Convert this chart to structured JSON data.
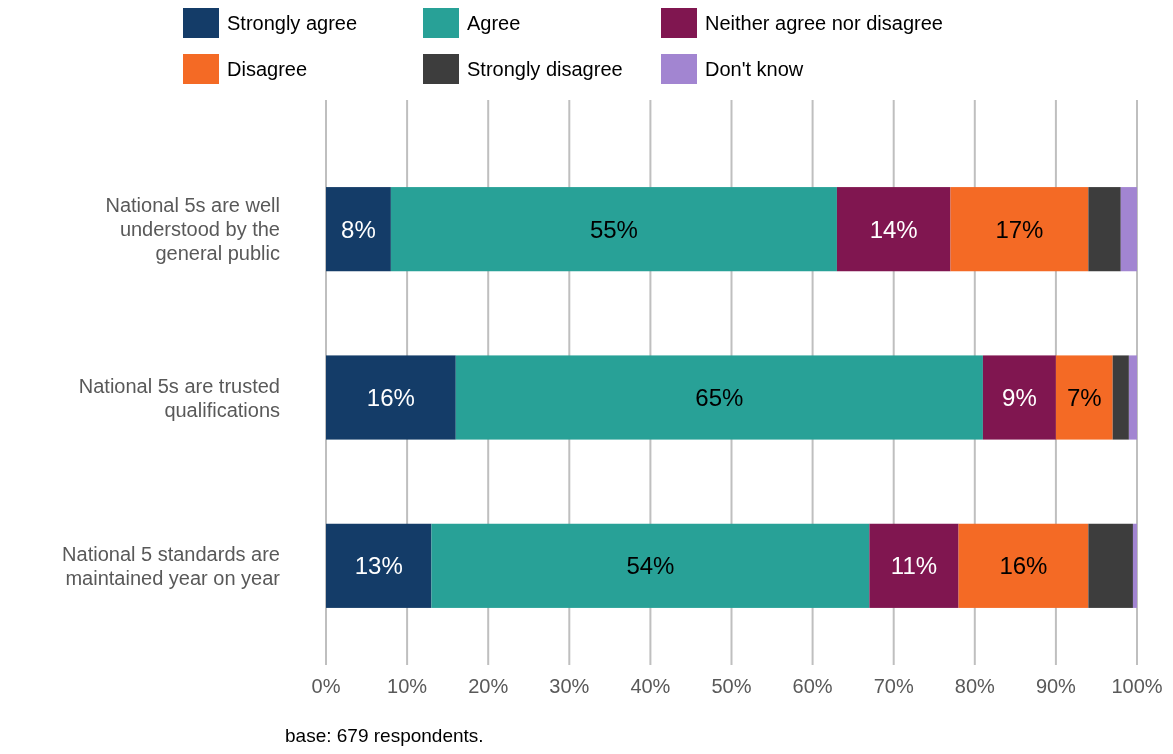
{
  "chart_data": {
    "type": "bar",
    "orientation": "horizontal",
    "stacked": true,
    "categories": [
      "National 5s are well understood by the general public",
      "National 5s are trusted qualifications",
      "National 5 standards are maintained year on year"
    ],
    "series": [
      {
        "name": "Strongly agree",
        "color": "#143c68",
        "values": [
          8,
          16,
          13
        ],
        "value_labels": [
          "8%",
          "16%",
          "13%"
        ]
      },
      {
        "name": "Agree",
        "color": "#28a197",
        "values": [
          55,
          65,
          54
        ],
        "value_labels": [
          "55%",
          "65%",
          "54%"
        ]
      },
      {
        "name": "Neither agree nor disagree",
        "color": "#801650",
        "values": [
          14,
          9,
          11
        ],
        "value_labels": [
          "14%",
          "9%",
          "11%"
        ]
      },
      {
        "name": "Disagree",
        "color": "#f46a25",
        "values": [
          17,
          7,
          16
        ],
        "value_labels": [
          "17%",
          "7%",
          "16%"
        ]
      },
      {
        "name": "Strongly disagree",
        "color": "#3d3d3d",
        "values": [
          4,
          2,
          5.5
        ],
        "value_labels": [
          null,
          null,
          null
        ]
      },
      {
        "name": "Don't know",
        "color": "#a285d1",
        "values": [
          2,
          1,
          0.5
        ],
        "value_labels": [
          null,
          null,
          null
        ]
      }
    ],
    "xlim": [
      0,
      100
    ],
    "xticks": [
      {
        "value": 0,
        "label": "0%"
      },
      {
        "value": 10,
        "label": "10%"
      },
      {
        "value": 20,
        "label": "20%"
      },
      {
        "value": 30,
        "label": "30%"
      },
      {
        "value": 40,
        "label": "40%"
      },
      {
        "value": 50,
        "label": "50%"
      },
      {
        "value": 60,
        "label": "60%"
      },
      {
        "value": 70,
        "label": "70%"
      },
      {
        "value": 80,
        "label": "80%"
      },
      {
        "value": 90,
        "label": "90%"
      },
      {
        "value": 100,
        "label": "100%"
      }
    ],
    "grid": "x",
    "legend": "top",
    "annotations": [
      "base: 679 respondents."
    ]
  }
}
